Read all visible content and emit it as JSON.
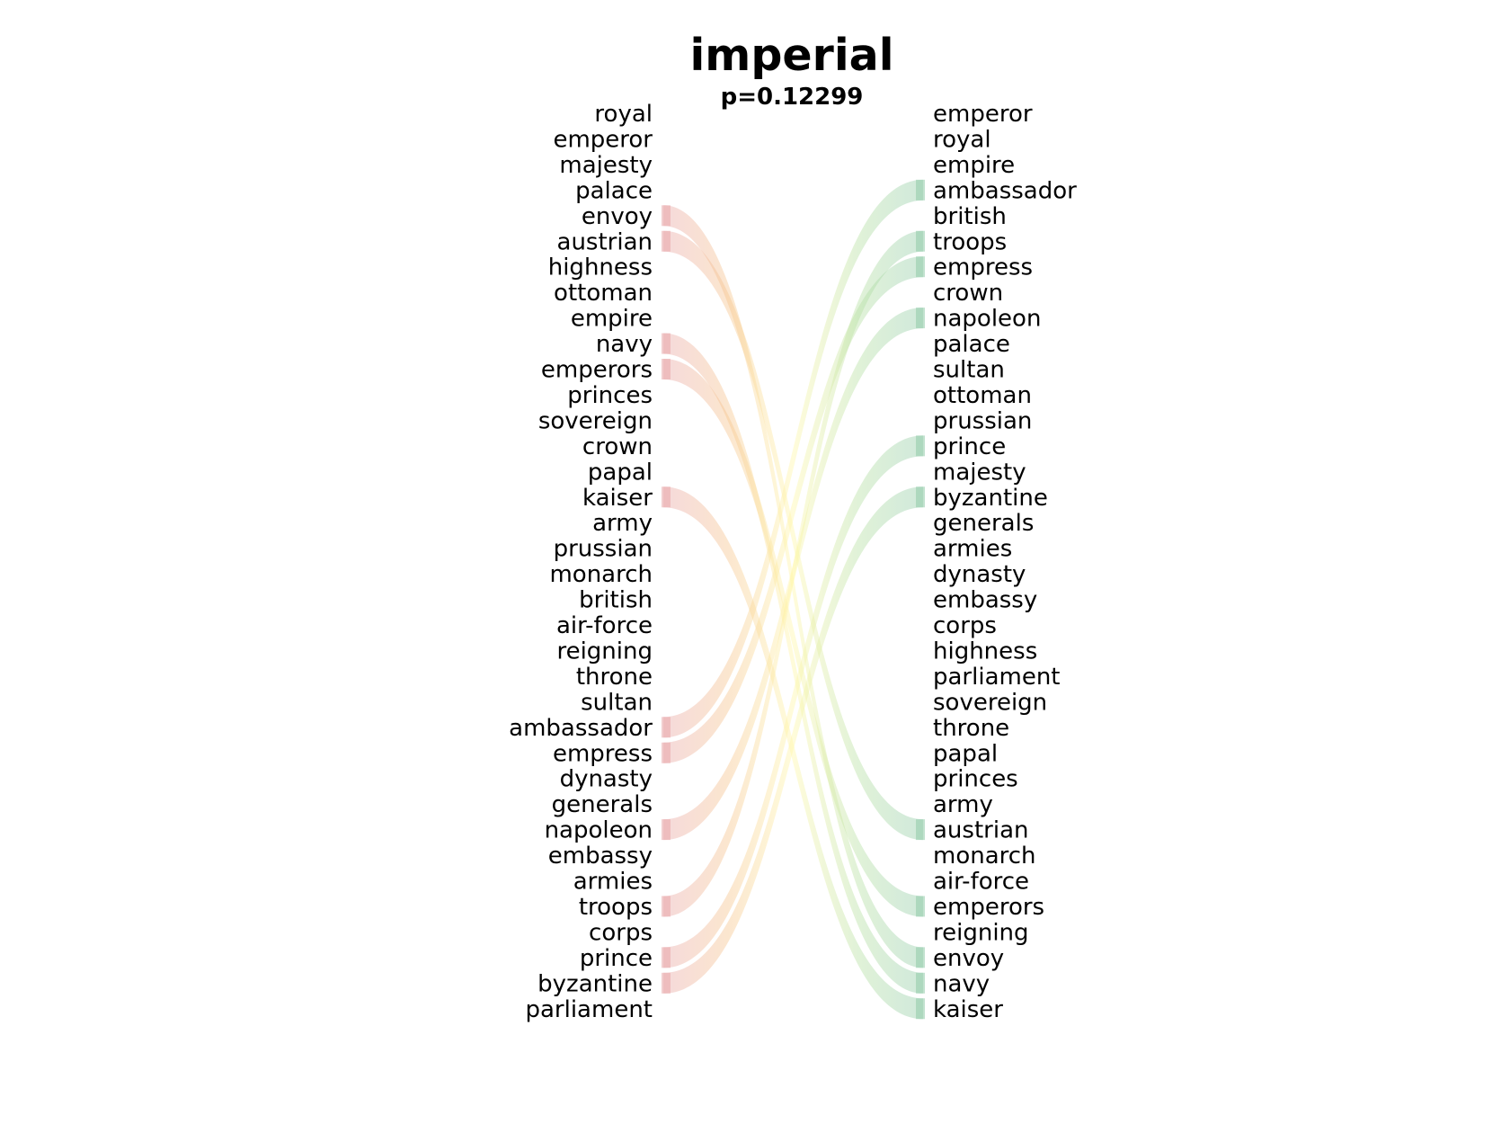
{
  "chart_data": {
    "type": "rank-comparison",
    "title": "imperial",
    "subtitle": "p=0.12299",
    "left_list": [
      "royal",
      "emperor",
      "majesty",
      "palace",
      "envoy",
      "austrian",
      "highness",
      "ottoman",
      "empire",
      "navy",
      "emperors",
      "princes",
      "sovereign",
      "crown",
      "papal",
      "kaiser",
      "army",
      "prussian",
      "monarch",
      "british",
      "air-force",
      "reigning",
      "throne",
      "sultan",
      "ambassador",
      "empress",
      "dynasty",
      "generals",
      "napoleon",
      "embassy",
      "armies",
      "troops",
      "corps",
      "prince",
      "byzantine",
      "parliament"
    ],
    "right_list": [
      "emperor",
      "royal",
      "empire",
      "ambassador",
      "british",
      "troops",
      "empress",
      "crown",
      "napoleon",
      "palace",
      "sultan",
      "ottoman",
      "prussian",
      "prince",
      "majesty",
      "byzantine",
      "generals",
      "armies",
      "dynasty",
      "embassy",
      "corps",
      "highness",
      "parliament",
      "sovereign",
      "throne",
      "papal",
      "princes",
      "army",
      "austrian",
      "monarch",
      "air-force",
      "emperors",
      "reigning",
      "envoy",
      "navy",
      "kaiser"
    ],
    "falling_links": [
      "envoy",
      "austrian",
      "navy",
      "emperors",
      "kaiser"
    ],
    "rising_links": [
      "ambassador",
      "empress",
      "napoleon",
      "troops",
      "prince",
      "byzantine"
    ],
    "colors": {
      "falling": "#e8a5a8",
      "rising": "#8fcaa8",
      "crossing_mid": "#fff7a8",
      "falling_mid": "#f6c48c",
      "rising_mid": "#b6e0a2"
    }
  }
}
